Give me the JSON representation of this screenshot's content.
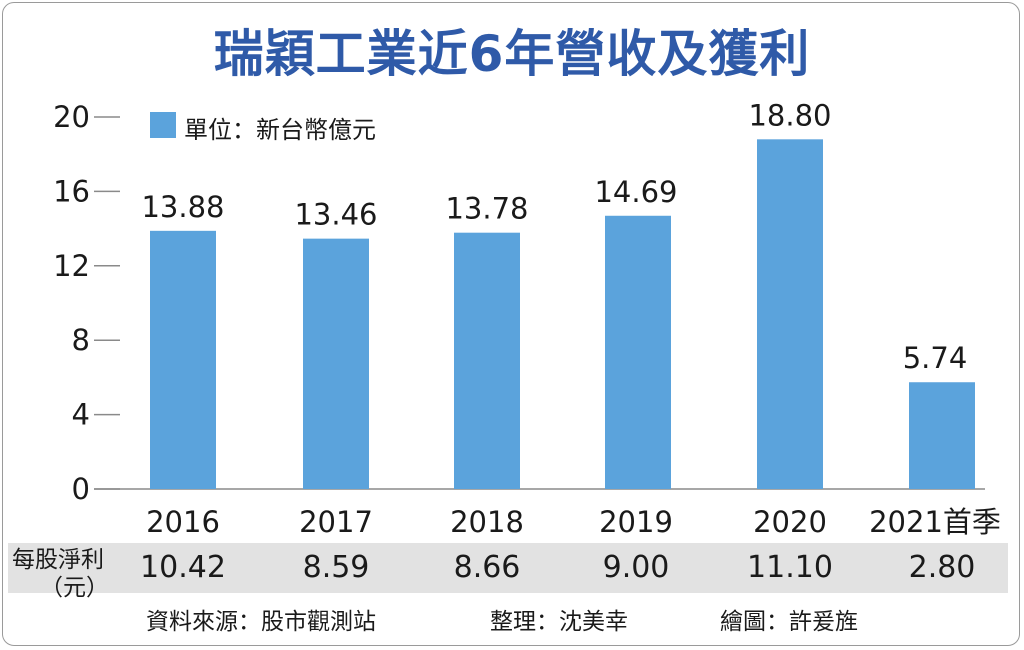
{
  "title": "瑞穎工業近6年營收及獲利",
  "legend": {
    "label": "單位：新台幣億元",
    "color": "#5ba3dc"
  },
  "chart_data": {
    "type": "bar",
    "title": "瑞穎工業近6年營收及獲利",
    "unit": "單位：新台幣億元",
    "categories": [
      "2016",
      "2017",
      "2018",
      "2019",
      "2020",
      "2021首季"
    ],
    "values": [
      13.88,
      13.46,
      13.78,
      14.69,
      18.8,
      5.74
    ],
    "value_labels": [
      "13.88",
      "13.46",
      "13.78",
      "14.69",
      "18.80",
      "5.74"
    ],
    "ylim": [
      0,
      20
    ],
    "yticks": [
      "0",
      "4",
      "8",
      "12",
      "16",
      "20"
    ],
    "bar_color": "#5ba3dc",
    "grid": false
  },
  "eps": {
    "label_line1": "每股淨利",
    "label_line2": "（元）",
    "values": [
      "10.42",
      "8.59",
      "8.66",
      "9.00",
      "11.10",
      "2.80"
    ]
  },
  "footer": {
    "source": "資料來源：股市觀測站",
    "editor": "整理：沈美幸",
    "artist": "繪圖：許爰旌"
  }
}
